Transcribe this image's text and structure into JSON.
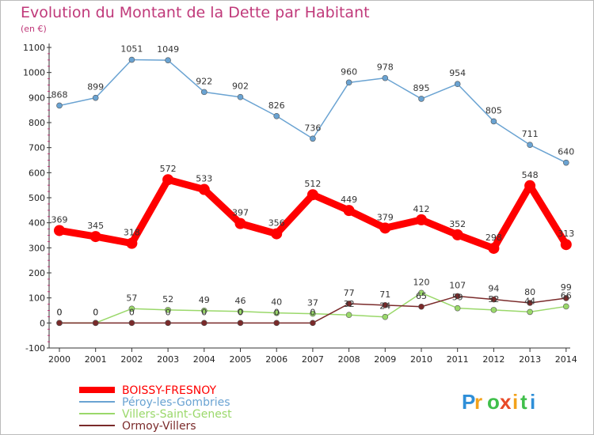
{
  "chart_data": {
    "type": "line",
    "title": "Evolution du Montant de la Dette par Habitant",
    "subtitle": "(en €)",
    "xlabel": "",
    "ylabel": "",
    "x": [
      "2000",
      "2001",
      "2002",
      "2003",
      "2004",
      "2005",
      "2006",
      "2007",
      "2008",
      "2009",
      "2010",
      "2011",
      "2012",
      "2013",
      "2014"
    ],
    "ylim": [
      -100,
      1100
    ],
    "yticks": [
      -100,
      0,
      100,
      200,
      300,
      400,
      500,
      600,
      700,
      800,
      900,
      1000,
      1100
    ],
    "grid": false,
    "legend_position": "bottom-left",
    "series": [
      {
        "name": "BOISSY-FRESNOY",
        "color": "#ff0000",
        "values": [
          369,
          345,
          318,
          572,
          533,
          397,
          356,
          512,
          449,
          379,
          412,
          352,
          298,
          548,
          313
        ]
      },
      {
        "name": "Péroy-les-Gombries",
        "color": "#6aa3d2",
        "values": [
          868,
          899,
          1051,
          1049,
          922,
          902,
          826,
          736,
          960,
          978,
          895,
          954,
          805,
          711,
          640
        ]
      },
      {
        "name": "Villers-Saint-Genest",
        "color": "#9ad86a",
        "values": [
          0,
          0,
          57,
          52,
          49,
          46,
          40,
          37,
          32,
          24,
          120,
          59,
          52,
          44,
          66
        ]
      },
      {
        "name": "Ormoy-Villers",
        "color": "#7a2a2a",
        "values": [
          0,
          0,
          0,
          0,
          0,
          0,
          0,
          0,
          77,
          71,
          65,
          107,
          94,
          80,
          99
        ]
      }
    ]
  },
  "brand": {
    "letters": [
      "P",
      "r",
      "o",
      "x",
      "i",
      "t",
      "i"
    ],
    "colors": [
      "#2f8fd8",
      "#f3a21b",
      "#3fbf4a",
      "#e84a28",
      "#f3a21b",
      "#3fbf4a",
      "#2f8fd8"
    ]
  }
}
